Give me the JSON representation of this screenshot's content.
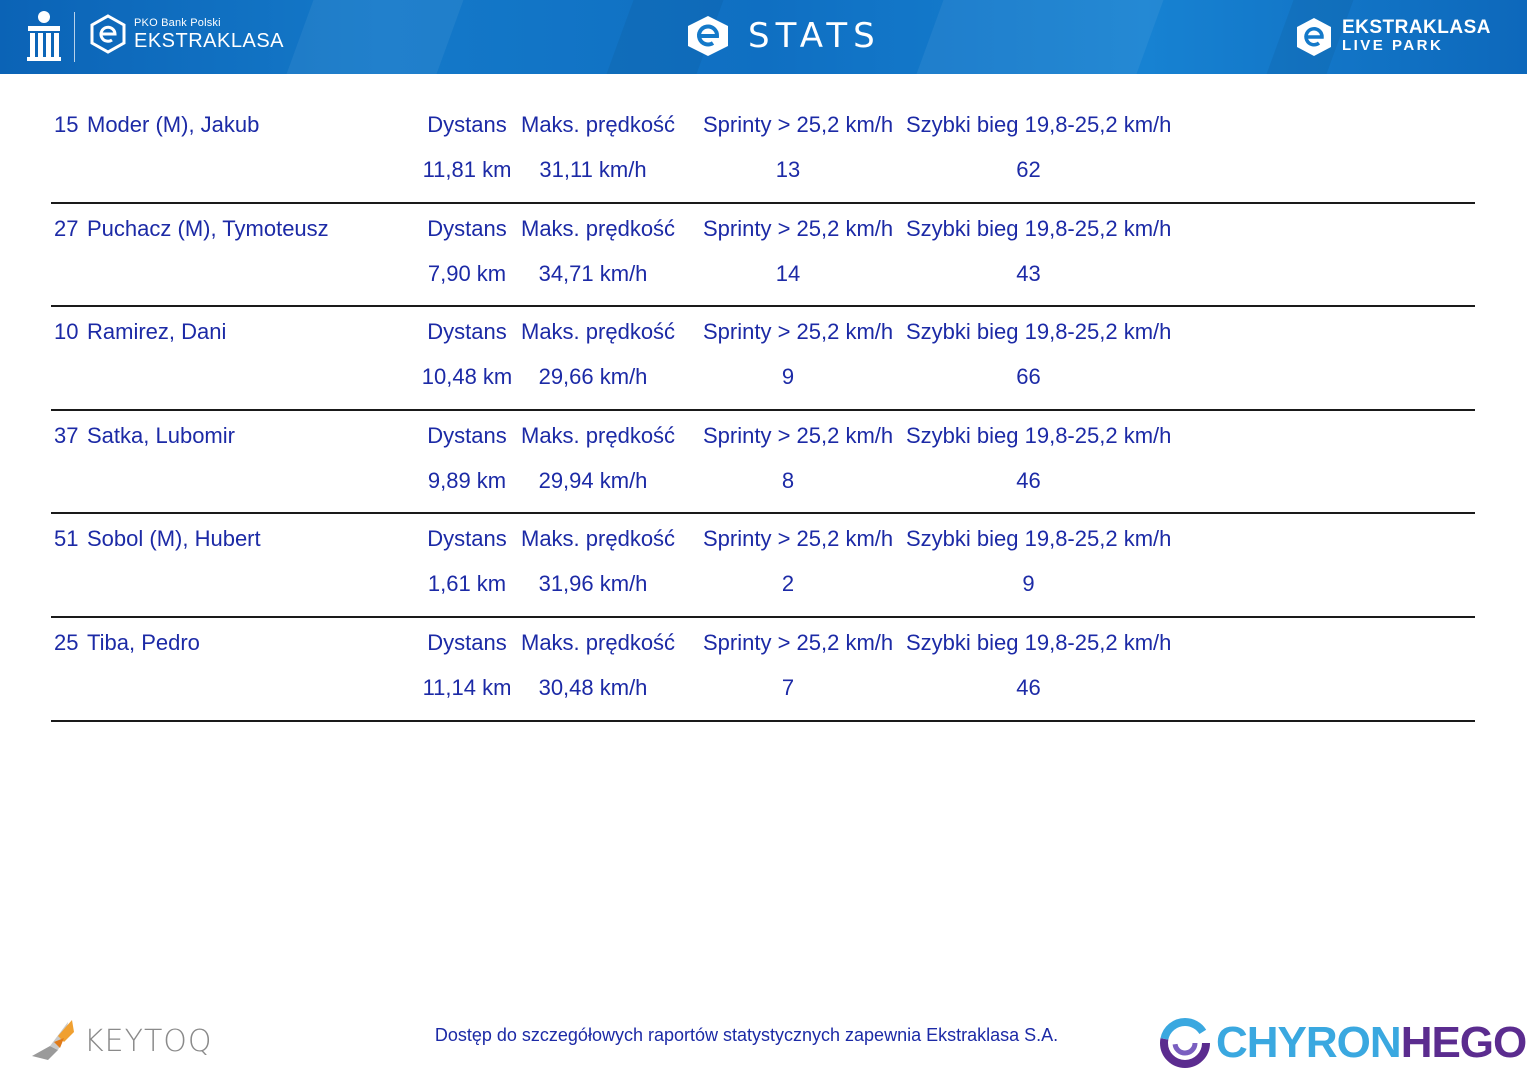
{
  "header": {
    "bank_label": "PKO Bank Polski",
    "brand_label": "EKSTRAKLASA",
    "title": "STATS",
    "livepark_line1": "EKSTRAKLASA",
    "livepark_line2": "LIVE PARK",
    "color_primary": "#0f6fc2"
  },
  "columns": {
    "distance": "Dystans",
    "max_speed": "Maks. prędkość",
    "sprints": "Sprinty > 25,2 km/h",
    "fast_run": "Szybki bieg 19,8-25,2 km/h"
  },
  "players": [
    {
      "number": "15",
      "name": "Moder (M), Jakub",
      "distance": "11,81 km",
      "max_speed": "31,11 km/h",
      "sprints": "13",
      "fast_run": "62"
    },
    {
      "number": "27",
      "name": "Puchacz (M), Tymoteusz",
      "distance": "7,90 km",
      "max_speed": "34,71 km/h",
      "sprints": "14",
      "fast_run": "43"
    },
    {
      "number": "10",
      "name": "Ramirez, Dani",
      "distance": "10,48 km",
      "max_speed": "29,66 km/h",
      "sprints": "9",
      "fast_run": "66"
    },
    {
      "number": "37",
      "name": "Satka, Lubomir",
      "distance": "9,89 km",
      "max_speed": "29,94 km/h",
      "sprints": "8",
      "fast_run": "46"
    },
    {
      "number": "51",
      "name": "Sobol (M), Hubert",
      "distance": "1,61 km",
      "max_speed": "31,96 km/h",
      "sprints": "2",
      "fast_run": "9"
    },
    {
      "number": "25",
      "name": "Tiba, Pedro",
      "distance": "11,14 km",
      "max_speed": "30,48 km/h",
      "sprints": "7",
      "fast_run": "46"
    }
  ],
  "footer": {
    "keytoq_label": "KEYTOQ",
    "note": "Dostęp do szczegółowych raportów statystycznych zapewnia Ekstraklasa S.A.",
    "chyron_part1": "CHYRON",
    "chyron_part2": "HEGO",
    "text_color": "#1c2aa6"
  }
}
